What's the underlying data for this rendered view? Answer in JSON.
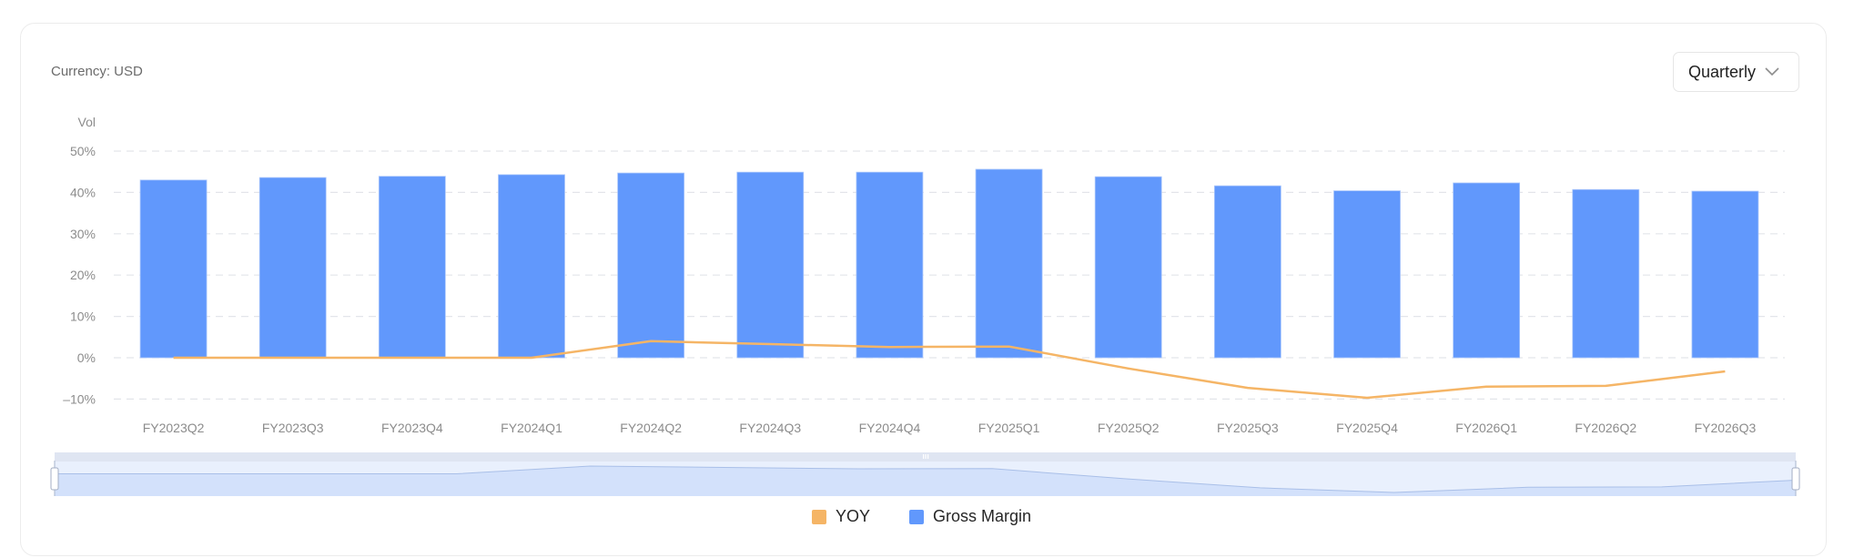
{
  "header": {
    "currency_label": "Currency: USD",
    "period_select": {
      "selected": "Quarterly",
      "icon": "chevron-down-icon"
    }
  },
  "colors": {
    "bar": "#6198fc",
    "line": "#f5b566",
    "grid": "#e3e5ea",
    "axis_text": "#8c8c8c",
    "slider_bar": "#dfe5f2",
    "slider_body": "#e9f0fd",
    "slider_fill": "#d3e1fb"
  },
  "legend": {
    "items": [
      {
        "label": "YOY",
        "color": "#f5b566"
      },
      {
        "label": "Gross Margin",
        "color": "#6198fc"
      }
    ]
  },
  "chart_data": {
    "type": "bar",
    "title": "",
    "ylabel": "Vol",
    "xlabel": "",
    "ylim": [
      -10,
      50
    ],
    "yticks": [
      "50%",
      "40%",
      "30%",
      "20%",
      "10%",
      "0%",
      "-10%"
    ],
    "grid": true,
    "legend_position": "bottom",
    "categories": [
      "FY2023Q2",
      "FY2023Q3",
      "FY2023Q4",
      "FY2024Q1",
      "FY2024Q2",
      "FY2024Q3",
      "FY2024Q4",
      "FY2025Q1",
      "FY2025Q2",
      "FY2025Q3",
      "FY2025Q4",
      "FY2026Q1",
      "FY2026Q2",
      "FY2026Q3"
    ],
    "series": [
      {
        "name": "Gross Margin",
        "type": "bar",
        "unit": "%",
        "values": [
          43.0,
          43.6,
          43.9,
          44.3,
          44.7,
          44.9,
          44.9,
          45.6,
          43.8,
          41.6,
          40.4,
          42.3,
          40.7,
          40.3
        ]
      },
      {
        "name": "YOY",
        "type": "line",
        "unit": "%",
        "values": [
          0.0,
          0.0,
          0.0,
          0.0,
          4.0,
          3.3,
          2.6,
          2.7,
          -2.6,
          -7.3,
          -9.7,
          -7.0,
          -6.8,
          -3.3
        ]
      }
    ],
    "data_zoom": {
      "start": 0,
      "end": 100
    }
  }
}
